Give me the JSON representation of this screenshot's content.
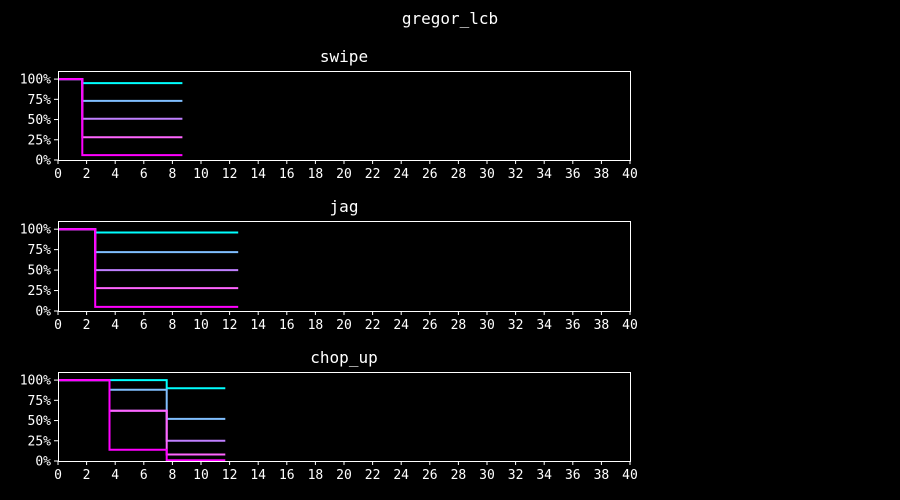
{
  "title": "gregor_lcb",
  "colors": {
    "background": "#000000",
    "text": "#ffffff",
    "series": [
      "#00ffff",
      "#80bfff",
      "#c080ff",
      "#ff66ff",
      "#ff00ff"
    ]
  },
  "chart_data": [
    {
      "type": "line",
      "step": true,
      "title": "swipe",
      "xlim": [
        0,
        40
      ],
      "ylim": [
        0,
        110
      ],
      "x_ticks": [
        "0",
        "2",
        "4",
        "6",
        "8",
        "10",
        "12",
        "14",
        "16",
        "18",
        "20",
        "22",
        "24",
        "26",
        "28",
        "30",
        "32",
        "34",
        "36",
        "38",
        "40"
      ],
      "y_ticks": [
        "0%",
        "25%",
        "50%",
        "75%",
        "100%"
      ],
      "series": [
        {
          "points": [
            [
              0,
              100
            ],
            [
              1.7,
              100
            ],
            [
              1.7,
              95
            ],
            [
              8.7,
              95
            ]
          ]
        },
        {
          "points": [
            [
              0,
              100
            ],
            [
              1.7,
              100
            ],
            [
              1.7,
              73
            ],
            [
              8.7,
              73
            ]
          ]
        },
        {
          "points": [
            [
              0,
              100
            ],
            [
              1.7,
              100
            ],
            [
              1.7,
              51
            ],
            [
              8.7,
              51
            ]
          ]
        },
        {
          "points": [
            [
              0,
              100
            ],
            [
              1.7,
              100
            ],
            [
              1.7,
              28
            ],
            [
              8.7,
              28
            ]
          ]
        },
        {
          "points": [
            [
              0,
              100
            ],
            [
              1.7,
              100
            ],
            [
              1.7,
              6
            ],
            [
              8.7,
              6
            ]
          ]
        }
      ]
    },
    {
      "type": "line",
      "step": true,
      "title": "jag",
      "xlim": [
        0,
        40
      ],
      "ylim": [
        0,
        110
      ],
      "x_ticks": [
        "0",
        "2",
        "4",
        "6",
        "8",
        "10",
        "12",
        "14",
        "16",
        "18",
        "20",
        "22",
        "24",
        "26",
        "28",
        "30",
        "32",
        "34",
        "36",
        "38",
        "40"
      ],
      "y_ticks": [
        "0%",
        "25%",
        "50%",
        "75%",
        "100%"
      ],
      "series": [
        {
          "points": [
            [
              0,
              100
            ],
            [
              2.6,
              100
            ],
            [
              2.6,
              96
            ],
            [
              12.6,
              96
            ]
          ]
        },
        {
          "points": [
            [
              0,
              100
            ],
            [
              2.6,
              100
            ],
            [
              2.6,
              72
            ],
            [
              12.6,
              72
            ]
          ]
        },
        {
          "points": [
            [
              0,
              100
            ],
            [
              2.6,
              100
            ],
            [
              2.6,
              50
            ],
            [
              12.6,
              50
            ]
          ]
        },
        {
          "points": [
            [
              0,
              100
            ],
            [
              2.6,
              100
            ],
            [
              2.6,
              28
            ],
            [
              12.6,
              28
            ]
          ]
        },
        {
          "points": [
            [
              0,
              100
            ],
            [
              2.6,
              100
            ],
            [
              2.6,
              5
            ],
            [
              12.6,
              5
            ]
          ]
        }
      ]
    },
    {
      "type": "line",
      "step": true,
      "title": "chop_up",
      "xlim": [
        0,
        40
      ],
      "ylim": [
        0,
        110
      ],
      "x_ticks": [
        "0",
        "2",
        "4",
        "6",
        "8",
        "10",
        "12",
        "14",
        "16",
        "18",
        "20",
        "22",
        "24",
        "26",
        "28",
        "30",
        "32",
        "34",
        "36",
        "38",
        "40"
      ],
      "y_ticks": [
        "0%",
        "25%",
        "50%",
        "75%",
        "100%"
      ],
      "series": [
        {
          "points": [
            [
              0,
              100
            ],
            [
              7.6,
              100
            ],
            [
              7.6,
              90
            ],
            [
              11.7,
              90
            ]
          ]
        },
        {
          "points": [
            [
              0,
              100
            ],
            [
              3.6,
              100
            ],
            [
              3.6,
              88
            ],
            [
              7.6,
              88
            ],
            [
              7.6,
              52
            ],
            [
              11.7,
              52
            ]
          ]
        },
        {
          "points": [
            [
              0,
              100
            ],
            [
              3.6,
              100
            ],
            [
              3.6,
              62
            ],
            [
              7.6,
              62
            ],
            [
              7.6,
              25
            ],
            [
              11.7,
              25
            ]
          ]
        },
        {
          "points": [
            [
              0,
              100
            ],
            [
              3.6,
              100
            ],
            [
              3.6,
              62
            ],
            [
              7.6,
              62
            ],
            [
              7.6,
              8
            ],
            [
              11.7,
              8
            ]
          ]
        },
        {
          "points": [
            [
              0,
              100
            ],
            [
              3.6,
              100
            ],
            [
              3.6,
              14
            ],
            [
              7.6,
              14
            ],
            [
              7.6,
              1
            ],
            [
              11.7,
              1
            ]
          ]
        }
      ]
    }
  ]
}
